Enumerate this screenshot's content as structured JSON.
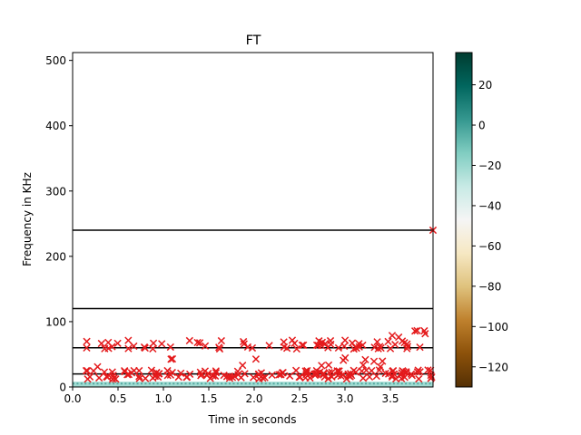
{
  "chart_data": {
    "type": "heatmap",
    "title": "FT",
    "xlabel": "Time in seconds",
    "ylabel": "Frequency in KHz",
    "xlim": [
      0.0,
      3.97
    ],
    "ylim": [
      0,
      512
    ],
    "xticks": [
      "0.0",
      "0.5",
      "1.0",
      "1.5",
      "2.0",
      "2.5",
      "3.0",
      "3.5"
    ],
    "yticks": [
      "0",
      "100",
      "200",
      "300",
      "400",
      "500"
    ],
    "colorbar": {
      "range": [
        -130,
        36
      ],
      "ticks": [
        "20",
        "0",
        "−20",
        "−40",
        "−60",
        "−80",
        "−100",
        "−120"
      ],
      "colormap": "BrBG",
      "stops": [
        "#543005",
        "#8c510a",
        "#bf812d",
        "#dfc27d",
        "#f6e8c3",
        "#f5f5f5",
        "#c7eae5",
        "#80cdc1",
        "#35978f",
        "#01665e",
        "#003c30"
      ]
    },
    "horizontal_lines_khz": [
      20,
      60,
      120,
      240
    ],
    "line_color": "#000000",
    "marker_color": "#e41a1c",
    "spectrogram_band_khz": [
      0,
      8
    ],
    "peak_bands": [
      {
        "x_range": [
          0.15,
          3.97
        ],
        "y_range": [
          12,
          26
        ],
        "count": 150
      },
      {
        "x_range": [
          0.15,
          3.85
        ],
        "y_range": [
          58,
          72
        ],
        "count": 70
      },
      {
        "x_range": [
          0.15,
          3.9
        ],
        "y_range": [
          28,
          45
        ],
        "count": 14
      },
      {
        "x_range": [
          3.5,
          3.97
        ],
        "y_range": [
          76,
          88
        ],
        "count": 6
      }
    ],
    "edge_marker": {
      "x": 3.97,
      "y": 240
    }
  }
}
